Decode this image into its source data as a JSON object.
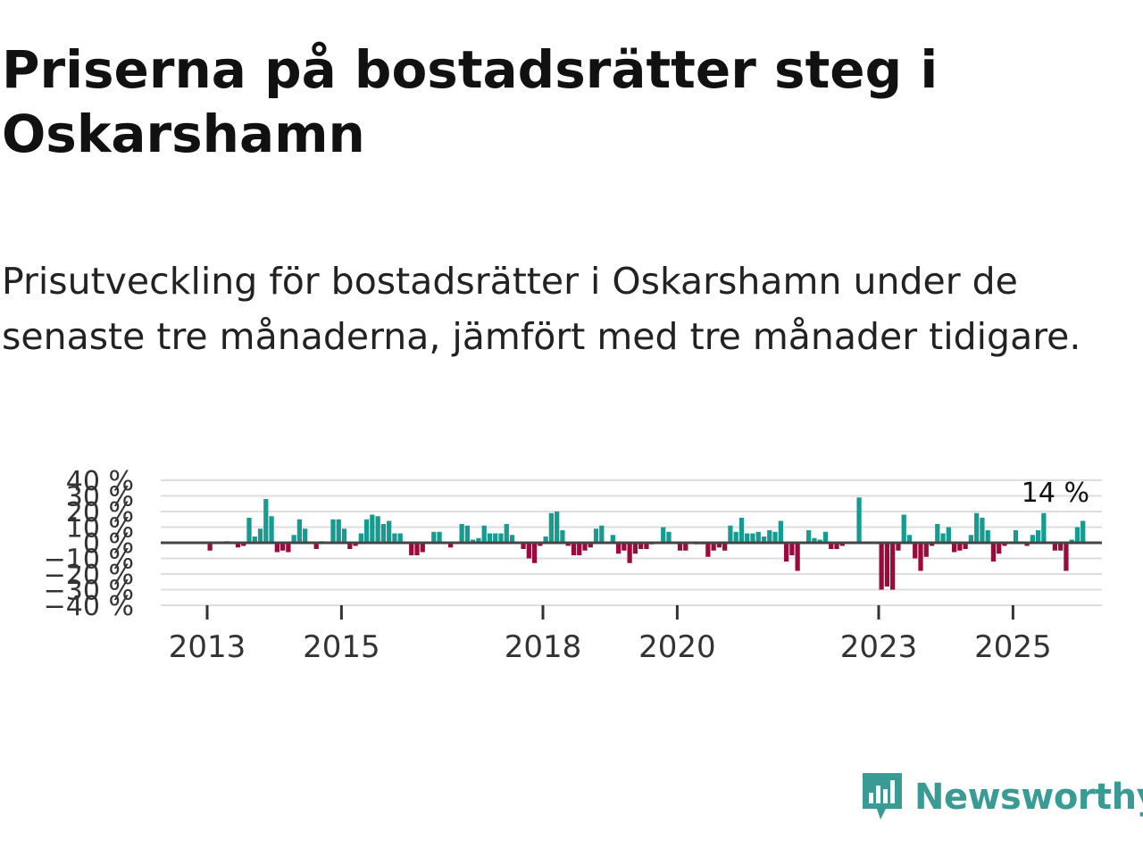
{
  "title": "Priserna på bostadsrätter steg i Oskarshamn",
  "subtitle": "Prisutveckling för bostadsrätter i Oskarshamn under de senaste tre månaderna, jämfört med tre månader tidigare.",
  "brand": {
    "name": "Newsworthy",
    "color": "#3a9b95"
  },
  "colors": {
    "positive": "#159b8f",
    "negative": "#9b0a3d",
    "zero_line": "#444444",
    "grid": "#dddddd"
  },
  "chart_data": {
    "type": "bar",
    "title": "Priserna på bostadsrätter steg i Oskarshamn",
    "xlabel": "",
    "ylabel": "",
    "ylim": [
      -40,
      40
    ],
    "y_ticks": [
      -40,
      -30,
      -20,
      -10,
      0,
      10,
      20,
      30,
      40
    ],
    "y_tick_labels": [
      "−40 %",
      "−30 %",
      "−20 %",
      "−10 %",
      "0 %",
      "10 %",
      "20 %",
      "30 %",
      "40 %"
    ],
    "x_ticks": [
      2013,
      2015,
      2018,
      2020,
      2023,
      2025
    ],
    "x_tick_labels": [
      "2013",
      "2015",
      "2018",
      "2020",
      "2023",
      "2025"
    ],
    "grid": true,
    "start": "2012-01",
    "frequency": "monthly",
    "last_value_label": "14 %",
    "values": [
      0,
      0,
      0,
      0,
      0,
      0,
      0,
      0,
      0,
      0,
      0,
      0,
      -5,
      0,
      0,
      1,
      0,
      -3,
      -2,
      16,
      4,
      9,
      28,
      17,
      -6,
      -5,
      -6,
      5,
      15,
      9,
      0,
      -4,
      1,
      0,
      15,
      15,
      9,
      -4,
      -2,
      6,
      15,
      18,
      17,
      12,
      14,
      6,
      6,
      0,
      -8,
      -8,
      -6,
      0,
      7,
      7,
      0,
      -3,
      0,
      12,
      11,
      2,
      3,
      11,
      6,
      6,
      6,
      12,
      5,
      0,
      -4,
      -10,
      -13,
      -2,
      4,
      19,
      20,
      8,
      -2,
      -8,
      -8,
      -5,
      -3,
      9,
      11,
      0,
      5,
      -7,
      -5,
      -13,
      -7,
      -4,
      -4,
      -1,
      0,
      10,
      7,
      0,
      -5,
      -5,
      0,
      -1,
      -1,
      -9,
      -5,
      -3,
      -5,
      11,
      7,
      16,
      6,
      6,
      7,
      4,
      8,
      7,
      14,
      -12,
      -8,
      -18,
      0,
      8,
      3,
      2,
      7,
      -4,
      -4,
      -2,
      0,
      0,
      29,
      0,
      0,
      0,
      -30,
      -28,
      -30,
      -5,
      18,
      5,
      -10,
      -18,
      -9,
      -2,
      12,
      6,
      10,
      -6,
      -5,
      -4,
      5,
      19,
      16,
      8,
      -12,
      -7,
      -2,
      0,
      8,
      0,
      -2,
      5,
      8,
      19,
      0,
      -5,
      -5,
      -18,
      2,
      10,
      14
    ]
  }
}
